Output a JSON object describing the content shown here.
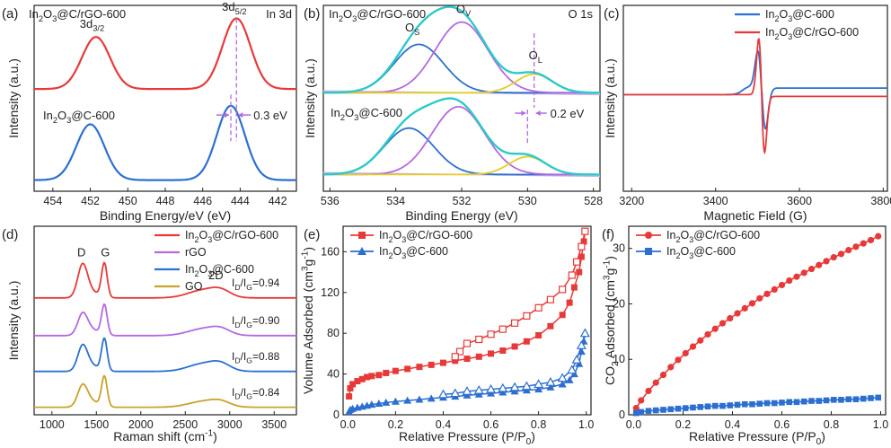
{
  "figure": {
    "label_a": "(a)",
    "label_b": "(b)",
    "label_c": "(c)",
    "label_d": "(d)",
    "label_e": "(e)",
    "label_f": "(f)"
  },
  "colors": {
    "red": "#e8393a",
    "blue": "#2d6fd0",
    "purple": "#b36ae0",
    "gold": "#c9a22a",
    "cyan": "#2cc9c9",
    "yellow": "#e4cc2a",
    "lavender": "#a98ae6",
    "baseline": "#c8b8e8"
  },
  "chart_data": [
    {
      "id": "a",
      "type": "line",
      "title": "",
      "corner_text": "In 3d",
      "xlabel": "Binding Energy/eV (eV)",
      "ylabel": "Intensity (a.u.)",
      "xlim": [
        455,
        441
      ],
      "xticks": [
        454,
        452,
        450,
        448,
        446,
        444,
        442
      ],
      "ylim": [
        0,
        1
      ],
      "series": [
        {
          "name": "In2O3@C/rGO-600",
          "color": "#e8393a",
          "offset": 0.55,
          "peaks": [
            {
              "center": 451.7,
              "height": 0.28,
              "width": 0.75
            },
            {
              "center": 444.2,
              "height": 0.38,
              "width": 0.75
            }
          ]
        },
        {
          "name": "In2O3@C-600",
          "color": "#2d6fd0",
          "offset": 0.06,
          "peaks": [
            {
              "center": 452.0,
              "height": 0.3,
              "width": 0.75
            },
            {
              "center": 444.5,
              "height": 0.4,
              "width": 0.75
            }
          ]
        }
      ],
      "annotations": {
        "peak1": "3d3/2",
        "peak2": "3d5/2",
        "shift": "0.3 eV",
        "label_top": "In2O3@C/rGO-600",
        "label_bottom": "In2O3@C-600"
      }
    },
    {
      "id": "b",
      "type": "line",
      "corner_text": "O 1s",
      "xlabel": "Binding Energy (eV)",
      "ylabel": "Intensity (a.u.)",
      "xlim": [
        536.2,
        527.8
      ],
      "xticks": [
        536,
        534,
        532,
        530,
        528
      ],
      "ylim": [
        0,
        1
      ],
      "components": [
        {
          "name": "OS",
          "color": "#2d6fd0",
          "center_top": 533.3,
          "center_bot": 533.6,
          "height": 0.26,
          "width": 0.75
        },
        {
          "name": "OV",
          "color": "#b36ae0",
          "center_top": 532.0,
          "center_bot": 532.1,
          "height": 0.38,
          "width": 0.8
        },
        {
          "name": "OL",
          "color": "#e4cc2a",
          "center_top": 529.8,
          "center_bot": 530.0,
          "height": 0.1,
          "width": 0.55
        }
      ],
      "annotations": {
        "os": "OS",
        "ov": "OV",
        "ol": "OL",
        "shift": "0.2 eV",
        "label_top": "In2O3@C/rGO-600",
        "label_bottom": "In2O3@C-600"
      }
    },
    {
      "id": "c",
      "type": "line",
      "xlabel": "Magnetic Field (G)",
      "ylabel": "Intensity (a.u.)",
      "xlim": [
        3180,
        3810
      ],
      "xticks": [
        3200,
        3400,
        3600,
        3800
      ],
      "ylim": [
        0,
        1
      ],
      "center": 3510,
      "series": [
        {
          "name": "In2O3@C-600",
          "color": "#2d6fd0",
          "amplitude": 0.22,
          "width": 9,
          "baseline_drift": 0.02
        },
        {
          "name": "In2O3@C/rGO-600",
          "color": "#e8393a",
          "amplitude": 0.3,
          "width": 7,
          "baseline_drift": -0.01
        }
      ]
    },
    {
      "id": "d",
      "type": "line",
      "xlabel": "Raman shift (cm-1)",
      "ylabel": "Intensity (a.u.)",
      "xlim": [
        800,
        3750
      ],
      "xticks": [
        1000,
        1500,
        2000,
        2500,
        3000,
        3500
      ],
      "ylim": [
        0,
        1
      ],
      "series": [
        {
          "name": "In2O3@C/rGO-600",
          "color": "#e8393a",
          "offset": 0.62,
          "ratio": "ID/IG=0.94"
        },
        {
          "name": "rGO",
          "color": "#b36ae0",
          "offset": 0.42,
          "ratio": "ID/IG=0.90"
        },
        {
          "name": "In2O3@C-600",
          "color": "#2d6fd0",
          "offset": 0.23,
          "ratio": "ID/IG=0.88"
        },
        {
          "name": "GO",
          "color": "#c9a22a",
          "offset": 0.04,
          "ratio": "ID/IG=0.84"
        }
      ],
      "bands": {
        "D": 1345,
        "G": 1590,
        "2D": 2700
      },
      "annotations": {
        "D": "D",
        "G": "G",
        "2D": "2D"
      }
    },
    {
      "id": "e",
      "type": "scatter",
      "xlabel": "Relative Pressure (P/P0)",
      "ylabel": "Volume Adsorbed (cm3g-1)",
      "xlim": [
        -0.02,
        1.02
      ],
      "ylim": [
        0,
        185
      ],
      "xticks": [
        0.0,
        0.2,
        0.4,
        0.6,
        0.8,
        1.0
      ],
      "yticks": [
        0,
        40,
        80,
        120,
        160
      ],
      "series": [
        {
          "name": "In2O3@C/rGO-600",
          "color": "#e8393a",
          "marker": "square",
          "adsorption": [
            [
              0.005,
              18
            ],
            [
              0.01,
              26
            ],
            [
              0.02,
              30
            ],
            [
              0.04,
              33
            ],
            [
              0.06,
              35
            ],
            [
              0.08,
              37
            ],
            [
              0.1,
              38
            ],
            [
              0.13,
              39
            ],
            [
              0.16,
              41
            ],
            [
              0.2,
              43
            ],
            [
              0.25,
              45
            ],
            [
              0.3,
              47
            ],
            [
              0.35,
              49
            ],
            [
              0.4,
              51
            ],
            [
              0.45,
              53
            ],
            [
              0.5,
              55
            ],
            [
              0.55,
              57
            ],
            [
              0.6,
              60
            ],
            [
              0.65,
              63
            ],
            [
              0.7,
              67
            ],
            [
              0.75,
              72
            ],
            [
              0.8,
              78
            ],
            [
              0.85,
              87
            ],
            [
              0.9,
              98
            ],
            [
              0.93,
              110
            ],
            [
              0.95,
              125
            ],
            [
              0.97,
              140
            ],
            [
              0.98,
              155
            ],
            [
              0.99,
              170
            ],
            [
              0.995,
              180
            ]
          ],
          "desorption": [
            [
              0.995,
              180
            ],
            [
              0.98,
              165
            ],
            [
              0.96,
              150
            ],
            [
              0.94,
              137
            ],
            [
              0.9,
              123
            ],
            [
              0.85,
              113
            ],
            [
              0.8,
              105
            ],
            [
              0.75,
              97
            ],
            [
              0.7,
              90
            ],
            [
              0.65,
              84
            ],
            [
              0.6,
              79
            ],
            [
              0.55,
              74
            ],
            [
              0.5,
              70
            ],
            [
              0.47,
              62
            ],
            [
              0.45,
              57
            ]
          ]
        },
        {
          "name": "In2O3@C-600",
          "color": "#2d6fd0",
          "marker": "triangle",
          "adsorption": [
            [
              0.005,
              3
            ],
            [
              0.01,
              5
            ],
            [
              0.02,
              6
            ],
            [
              0.04,
              7
            ],
            [
              0.06,
              8
            ],
            [
              0.08,
              9
            ],
            [
              0.1,
              10
            ],
            [
              0.13,
              11
            ],
            [
              0.16,
              12
            ],
            [
              0.2,
              13
            ],
            [
              0.25,
              14
            ],
            [
              0.3,
              15
            ],
            [
              0.35,
              16
            ],
            [
              0.4,
              17
            ],
            [
              0.45,
              18
            ],
            [
              0.5,
              19
            ],
            [
              0.55,
              20
            ],
            [
              0.6,
              21
            ],
            [
              0.65,
              22
            ],
            [
              0.7,
              23
            ],
            [
              0.75,
              24
            ],
            [
              0.8,
              25
            ],
            [
              0.85,
              27
            ],
            [
              0.9,
              30
            ],
            [
              0.93,
              34
            ],
            [
              0.95,
              40
            ],
            [
              0.97,
              50
            ],
            [
              0.98,
              62
            ],
            [
              0.99,
              72
            ],
            [
              0.995,
              80
            ]
          ],
          "desorption": [
            [
              0.995,
              80
            ],
            [
              0.98,
              68
            ],
            [
              0.96,
              54
            ],
            [
              0.94,
              44
            ],
            [
              0.9,
              36
            ],
            [
              0.85,
              32
            ],
            [
              0.8,
              30
            ],
            [
              0.75,
              28
            ],
            [
              0.7,
              27
            ],
            [
              0.65,
              26
            ],
            [
              0.6,
              25
            ],
            [
              0.55,
              24
            ],
            [
              0.5,
              23
            ],
            [
              0.45,
              21
            ],
            [
              0.4,
              20
            ]
          ]
        }
      ]
    },
    {
      "id": "f",
      "type": "line",
      "xlabel": "Relative Pressure (P/P0)",
      "ylabel": "CO2 Adsorbed (cm3g-1)",
      "xlim": [
        -0.02,
        1.02
      ],
      "ylim": [
        0,
        34
      ],
      "xticks": [
        0.0,
        0.2,
        0.4,
        0.6,
        0.8,
        1.0
      ],
      "yticks": [
        0,
        10,
        20,
        30
      ],
      "series": [
        {
          "name": "In2O3@C/rGO-600",
          "color": "#e8393a",
          "marker": "circle",
          "points": [
            [
              0.01,
              1.2
            ],
            [
              0.03,
              2.6
            ],
            [
              0.06,
              4.3
            ],
            [
              0.09,
              5.8
            ],
            [
              0.12,
              7.2
            ],
            [
              0.15,
              8.6
            ],
            [
              0.18,
              9.9
            ],
            [
              0.21,
              11.1
            ],
            [
              0.24,
              12.3
            ],
            [
              0.27,
              13.4
            ],
            [
              0.3,
              14.5
            ],
            [
              0.33,
              15.5
            ],
            [
              0.36,
              16.5
            ],
            [
              0.39,
              17.4
            ],
            [
              0.42,
              18.3
            ],
            [
              0.45,
              19.2
            ],
            [
              0.48,
              20.1
            ],
            [
              0.51,
              21.0
            ],
            [
              0.54,
              21.8
            ],
            [
              0.57,
              22.6
            ],
            [
              0.6,
              23.4
            ],
            [
              0.63,
              24.2
            ],
            [
              0.66,
              24.9
            ],
            [
              0.69,
              25.6
            ],
            [
              0.72,
              26.3
            ],
            [
              0.75,
              27.0
            ],
            [
              0.78,
              27.7
            ],
            [
              0.81,
              28.4
            ],
            [
              0.84,
              29.0
            ],
            [
              0.87,
              29.7
            ],
            [
              0.9,
              30.3
            ],
            [
              0.93,
              30.9
            ],
            [
              0.96,
              31.5
            ],
            [
              0.99,
              32.2
            ]
          ]
        },
        {
          "name": "In2O3@C-600",
          "color": "#2d6fd0",
          "marker": "square",
          "points": [
            [
              0.01,
              0.3
            ],
            [
              0.03,
              0.5
            ],
            [
              0.06,
              0.7
            ],
            [
              0.09,
              0.8
            ],
            [
              0.12,
              0.9
            ],
            [
              0.15,
              1.0
            ],
            [
              0.18,
              1.1
            ],
            [
              0.21,
              1.2
            ],
            [
              0.24,
              1.3
            ],
            [
              0.27,
              1.4
            ],
            [
              0.3,
              1.5
            ],
            [
              0.33,
              1.6
            ],
            [
              0.36,
              1.6
            ],
            [
              0.39,
              1.7
            ],
            [
              0.42,
              1.8
            ],
            [
              0.45,
              1.9
            ],
            [
              0.48,
              1.9
            ],
            [
              0.51,
              2.0
            ],
            [
              0.54,
              2.1
            ],
            [
              0.57,
              2.1
            ],
            [
              0.6,
              2.2
            ],
            [
              0.63,
              2.3
            ],
            [
              0.66,
              2.3
            ],
            [
              0.69,
              2.4
            ],
            [
              0.72,
              2.5
            ],
            [
              0.75,
              2.5
            ],
            [
              0.78,
              2.6
            ],
            [
              0.81,
              2.7
            ],
            [
              0.84,
              2.7
            ],
            [
              0.87,
              2.8
            ],
            [
              0.9,
              2.8
            ],
            [
              0.93,
              2.9
            ],
            [
              0.96,
              3.0
            ],
            [
              0.99,
              3.1
            ]
          ]
        }
      ]
    }
  ]
}
